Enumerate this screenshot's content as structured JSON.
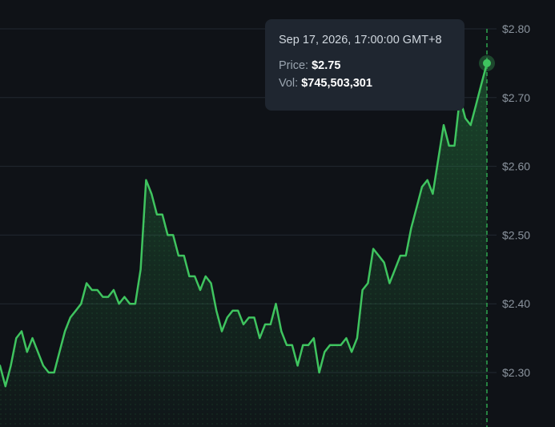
{
  "chart_data": {
    "type": "area",
    "title": "",
    "xlabel": "",
    "ylabel": "",
    "y_ticks": [
      "$2.30",
      "$2.40",
      "$2.50",
      "$2.60",
      "$2.70",
      "$2.80"
    ],
    "y_tick_values": [
      2.3,
      2.4,
      2.5,
      2.6,
      2.7,
      2.8
    ],
    "ylim": [
      2.22,
      2.84
    ],
    "grid": true,
    "line_color": "#3fc45f",
    "series": [
      {
        "values": [
          2.31,
          2.28,
          2.31,
          2.35,
          2.36,
          2.33,
          2.35,
          2.33,
          2.31,
          2.3,
          2.3,
          2.33,
          2.36,
          2.38,
          2.39,
          2.4,
          2.43,
          2.42,
          2.42,
          2.41,
          2.41,
          2.42,
          2.4,
          2.41,
          2.4,
          2.4,
          2.45,
          2.58,
          2.56,
          2.53,
          2.53,
          2.5,
          2.5,
          2.47,
          2.47,
          2.44,
          2.44,
          2.42,
          2.44,
          2.43,
          2.39,
          2.36,
          2.38,
          2.39,
          2.39,
          2.37,
          2.38,
          2.38,
          2.35,
          2.37,
          2.37,
          2.4,
          2.36,
          2.34,
          2.34,
          2.31,
          2.34,
          2.34,
          2.35,
          2.3,
          2.33,
          2.34,
          2.34,
          2.34,
          2.35,
          2.33,
          2.35,
          2.42,
          2.43,
          2.48,
          2.47,
          2.46,
          2.43,
          2.45,
          2.47,
          2.47,
          2.51,
          2.54,
          2.57,
          2.58,
          2.56,
          2.61,
          2.66,
          2.63,
          2.63,
          2.7,
          2.67,
          2.66,
          2.69,
          2.72,
          2.75
        ]
      }
    ]
  },
  "tooltip": {
    "timestamp": "Sep 17, 2026, 17:00:00 GMT+8",
    "price_label": "Price:",
    "price_value": "$2.75",
    "vol_label": "Vol:",
    "vol_value": "$745,503,301"
  },
  "colors": {
    "background": "#0f1217",
    "grid": "#222831",
    "tooltip_bg": "#1f2630",
    "accent": "#3fc45f"
  }
}
